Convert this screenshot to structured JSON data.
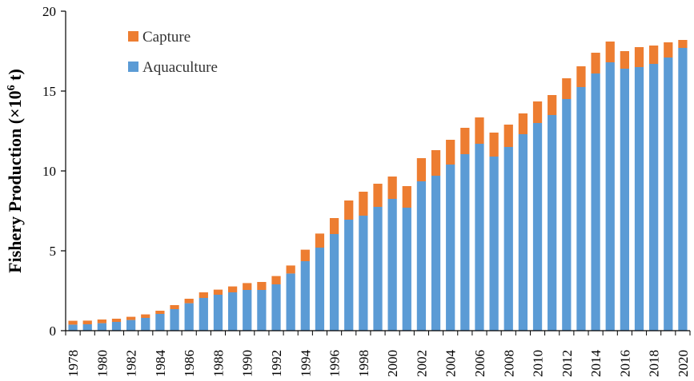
{
  "chart_data": {
    "type": "bar",
    "stacked": true,
    "ylabel": "Fishery Production (×10⁶ t)",
    "ylabel_parts": {
      "prefix": "Fishery Production (×10",
      "sup": "6",
      "suffix": " t)"
    },
    "ylim": [
      0,
      20
    ],
    "yticks": [
      0,
      5,
      10,
      15,
      20
    ],
    "xtick_labels": [
      "1978",
      "1980",
      "1982",
      "1984",
      "1986",
      "1988",
      "1990",
      "1992",
      "1994",
      "1996",
      "1998",
      "2000",
      "2002",
      "2004",
      "2006",
      "2008",
      "2010",
      "2012",
      "2014",
      "2016",
      "2018",
      "2020"
    ],
    "categories": [
      "1978",
      "1979",
      "1980",
      "1981",
      "1982",
      "1983",
      "1984",
      "1985",
      "1986",
      "1987",
      "1988",
      "1989",
      "1990",
      "1991",
      "1992",
      "1993",
      "1994",
      "1995",
      "1996",
      "1997",
      "1998",
      "1999",
      "2000",
      "2001",
      "2002",
      "2003",
      "2004",
      "2005",
      "2006",
      "2007",
      "2008",
      "2009",
      "2010",
      "2011",
      "2012",
      "2013",
      "2014",
      "2015",
      "2016",
      "2017",
      "2018",
      "2019",
      "2020"
    ],
    "legend_position": "top-left",
    "grid": false,
    "series": [
      {
        "name": "Aquaculture",
        "color": "#5B9BD5",
        "values": [
          0.38,
          0.4,
          0.47,
          0.55,
          0.67,
          0.8,
          1.05,
          1.35,
          1.72,
          2.05,
          2.25,
          2.4,
          2.55,
          2.55,
          2.9,
          3.58,
          4.35,
          5.2,
          6.05,
          6.95,
          7.2,
          7.75,
          8.25,
          7.7,
          9.35,
          9.7,
          10.4,
          11.05,
          11.7,
          10.9,
          11.5,
          12.3,
          13.0,
          13.5,
          14.5,
          15.25,
          16.1,
          16.8,
          16.4,
          16.5,
          16.7,
          17.1,
          17.7
        ]
      },
      {
        "name": "Capture",
        "color": "#ED7D31",
        "values": [
          0.24,
          0.23,
          0.23,
          0.2,
          0.2,
          0.22,
          0.2,
          0.25,
          0.28,
          0.35,
          0.32,
          0.37,
          0.43,
          0.5,
          0.52,
          0.5,
          0.72,
          0.88,
          1.0,
          1.2,
          1.5,
          1.45,
          1.4,
          1.35,
          1.45,
          1.6,
          1.55,
          1.65,
          1.65,
          1.5,
          1.4,
          1.3,
          1.35,
          1.25,
          1.3,
          1.3,
          1.3,
          1.3,
          1.1,
          1.25,
          1.15,
          0.95,
          0.5
        ]
      }
    ],
    "legend": [
      {
        "label": "Capture",
        "color": "#ED7D31"
      },
      {
        "label": "Aquaculture",
        "color": "#5B9BD5"
      }
    ]
  }
}
